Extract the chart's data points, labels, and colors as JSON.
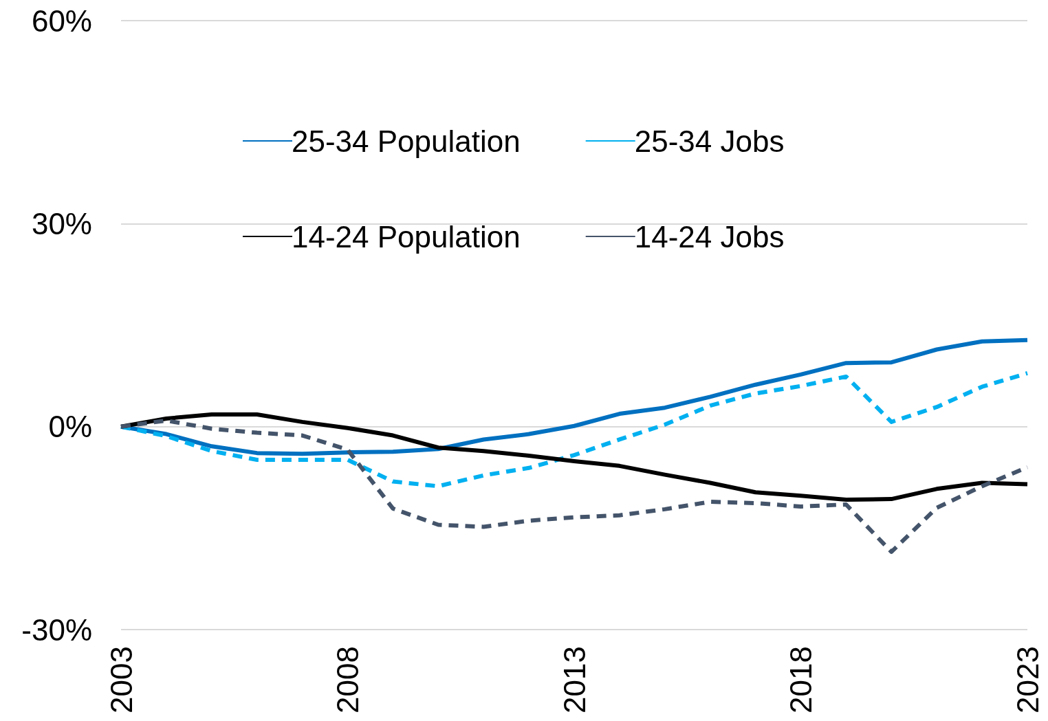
{
  "chart_data": {
    "type": "line",
    "x": [
      2003,
      2004,
      2005,
      2006,
      2007,
      2008,
      2009,
      2010,
      2011,
      2012,
      2013,
      2014,
      2015,
      2016,
      2017,
      2018,
      2019,
      2020,
      2021,
      2022,
      2023
    ],
    "series": [
      {
        "name": "25-34 Population",
        "color": "#0070c0",
        "line_style": "solid",
        "values": [
          0,
          -1.1,
          -2.9,
          -3.9,
          -4.0,
          -3.8,
          -3.7,
          -3.3,
          -1.9,
          -1.1,
          0.1,
          1.9,
          2.8,
          4.4,
          6.2,
          7.7,
          9.4,
          9.5,
          11.4,
          12.6,
          12.8
        ]
      },
      {
        "name": "25-34 Jobs",
        "color": "#00b0f0",
        "line_style": "dashed",
        "values": [
          0,
          -1.4,
          -3.6,
          -4.9,
          -4.9,
          -4.9,
          -8.1,
          -8.8,
          -7.2,
          -6.1,
          -4.2,
          -1.9,
          0.3,
          3.1,
          4.9,
          6.0,
          7.4,
          0.7,
          2.9,
          5.9,
          7.9
        ]
      },
      {
        "name": "14-24 Population",
        "color": "#000000",
        "line_style": "solid",
        "values": [
          0,
          1.2,
          1.8,
          1.8,
          0.7,
          -0.2,
          -1.3,
          -3.1,
          -3.6,
          -4.3,
          -5.1,
          -5.8,
          -7.1,
          -8.3,
          -9.7,
          -10.2,
          -10.8,
          -10.7,
          -9.2,
          -8.3,
          -8.5
        ]
      },
      {
        "name": "14-24 Jobs",
        "color": "#44546a",
        "line_style": "dashed",
        "values": [
          0,
          0.9,
          -0.3,
          -0.9,
          -1.3,
          -3.4,
          -12.1,
          -14.5,
          -14.8,
          -13.9,
          -13.4,
          -13.1,
          -12.2,
          -11.1,
          -11.3,
          -11.8,
          -11.5,
          -18.5,
          -12.0,
          -8.8,
          -6.0
        ]
      }
    ],
    "xlim": [
      2003,
      2023
    ],
    "xticks": [
      2003,
      2008,
      2013,
      2018,
      2023
    ],
    "ylim": [
      -30,
      60
    ],
    "yticks": [
      {
        "value": -30,
        "label": "-30%"
      },
      {
        "value": 0,
        "label": "0%"
      },
      {
        "value": 30,
        "label": "30%"
      },
      {
        "value": 60,
        "label": "60%"
      }
    ],
    "grid": "y",
    "legend": "top",
    "marker": "none"
  }
}
